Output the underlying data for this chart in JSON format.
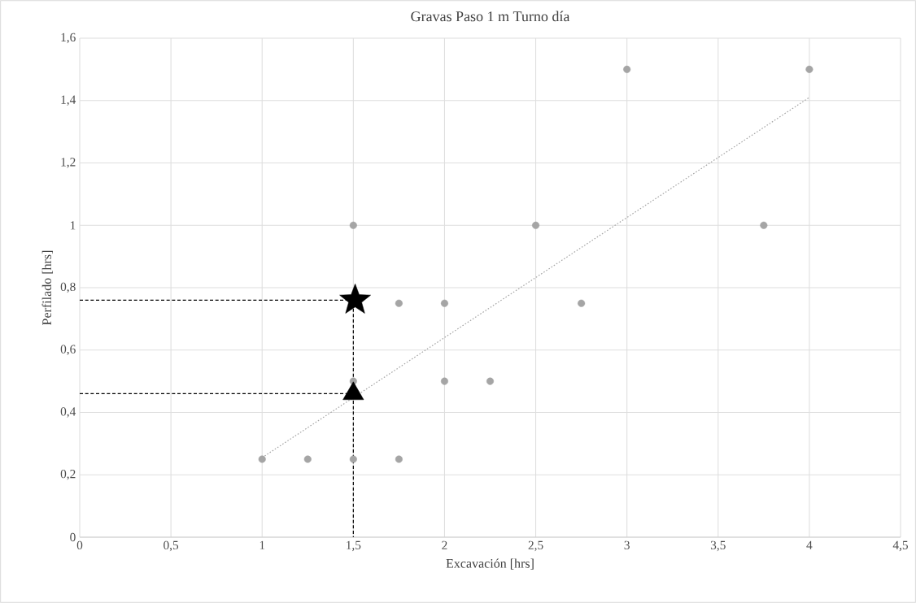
{
  "chart_data": {
    "type": "scatter",
    "title": "Gravas Paso 1 m Turno día",
    "xlabel": "Excavación [hrs]",
    "ylabel": "Perfilado [hrs]",
    "xlim": [
      0,
      4.5
    ],
    "ylim": [
      0,
      1.6
    ],
    "xticks": [
      0,
      {
        "value": 0.5,
        "label": "0,5"
      },
      1,
      {
        "value": 1.5,
        "label": "1,5"
      },
      2,
      {
        "value": 2.5,
        "label": "2,5"
      },
      3,
      {
        "value": 3.5,
        "label": "3,5"
      },
      4,
      {
        "value": 4.5,
        "label": "4,5"
      }
    ],
    "yticks": [
      0,
      {
        "value": 0.2,
        "label": "0,2"
      },
      {
        "value": 0.4,
        "label": "0,4"
      },
      {
        "value": 0.6,
        "label": "0,6"
      },
      {
        "value": 0.8,
        "label": "0,8"
      },
      1,
      {
        "value": 1.2,
        "label": "1,2"
      },
      {
        "value": 1.4,
        "label": "1,4"
      },
      {
        "value": 1.6,
        "label": "1,6"
      }
    ],
    "grid": true,
    "series": [
      {
        "color": "#a5a5a5",
        "marker": "circle",
        "x": [
          1,
          1.25,
          1.5,
          1.75,
          1.5,
          1.5,
          1.75,
          2,
          2,
          2.25,
          2.5,
          2.75,
          3,
          3.75,
          4
        ],
        "values": [
          0.25,
          0.25,
          0.25,
          0.25,
          0.5,
          1,
          0.75,
          0.75,
          0.5,
          0.5,
          1,
          0.75,
          1.5,
          1,
          1.5
        ]
      },
      {
        "type": "line",
        "color": "#a5a5a5",
        "line_style": "dotted",
        "marker": "none",
        "x": [
          1,
          4
        ],
        "values": [
          0.255,
          1.41
        ]
      },
      {
        "type": "line",
        "color": "#000000",
        "line_style": "dashed",
        "marker": "none",
        "x": [
          0,
          1.5,
          1.5
        ],
        "values": [
          0.76,
          0.76,
          0
        ]
      },
      {
        "type": "line",
        "color": "#000000",
        "line_style": "dashed",
        "marker": "none",
        "x": [
          0,
          1.5
        ],
        "values": [
          0.46,
          0.46
        ]
      },
      {
        "color": "#000000",
        "marker": "star",
        "x": [
          1.51
        ],
        "values": [
          0.76
        ]
      },
      {
        "color": "#000000",
        "marker": "triangle",
        "x": [
          1.5
        ],
        "values": [
          0.46
        ]
      }
    ]
  }
}
